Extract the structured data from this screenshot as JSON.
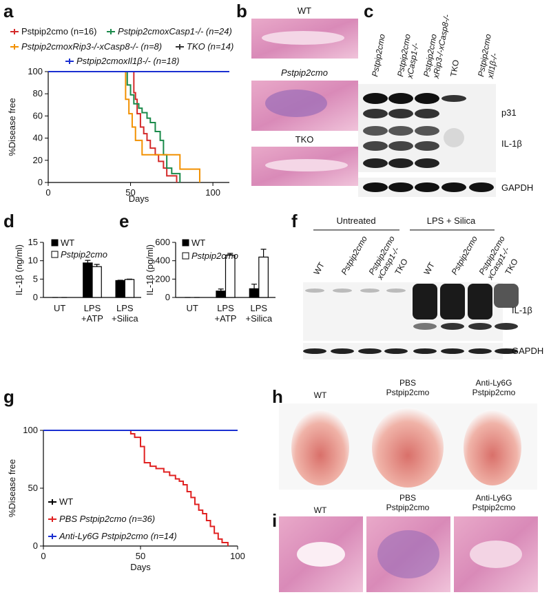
{
  "panel_labels": [
    "a",
    "b",
    "c",
    "d",
    "e",
    "f",
    "g",
    "h",
    "i"
  ],
  "chart_data": [
    {
      "type": "step",
      "x_label": "Days",
      "y_label": "%Disease free",
      "xlim": [
        0,
        110
      ],
      "xticks": [
        0,
        50,
        100
      ],
      "ylim": [
        0,
        100
      ],
      "yticks": [
        0,
        20,
        40,
        60,
        80,
        100
      ],
      "series": [
        {
          "name": "Pstpip2cmo (n=16)",
          "color": "#d42a2a",
          "x": [
            0,
            52,
            53,
            54,
            56,
            58,
            60,
            62,
            65,
            67,
            70,
            72,
            75,
            78
          ],
          "values": [
            100,
            81,
            75,
            62,
            50,
            44,
            38,
            31,
            25,
            19,
            13,
            6,
            6,
            0
          ]
        },
        {
          "name": "Pstpip2cmoxCasp1-/- (n=24)",
          "color": "#1a8a4a",
          "x": [
            0,
            48,
            50,
            52,
            55,
            57,
            60,
            62,
            65,
            68,
            70,
            72,
            75,
            80
          ],
          "values": [
            100,
            88,
            79,
            71,
            67,
            63,
            58,
            54,
            46,
            38,
            25,
            13,
            8,
            0
          ]
        },
        {
          "name": "Pstpip2cmoxRip3-/-xCasp8-/- (n=8)",
          "color": "#f29000",
          "x": [
            0,
            47,
            49,
            51,
            53,
            57,
            66,
            80,
            92
          ],
          "values": [
            100,
            75,
            62,
            50,
            38,
            25,
            25,
            12,
            0
          ]
        },
        {
          "name": "TKO (n=14)",
          "color": "#333333",
          "x": [
            0,
            110
          ],
          "values": [
            100,
            100
          ]
        },
        {
          "name": "Pstpip2cmoxIl1β-/- (n=18)",
          "color": "#1a2fd1",
          "x": [
            0,
            110
          ],
          "values": [
            100,
            100
          ]
        }
      ]
    },
    {
      "type": "bar",
      "y_label": "IL-1β (ng/ml)",
      "categories": [
        "UT",
        "LPS\n+ATP",
        "LPS\n+Silica"
      ],
      "ylim": [
        0,
        15
      ],
      "yticks": [
        0,
        5,
        10,
        15
      ],
      "series": [
        {
          "name": "WT",
          "color": "#000000",
          "values": [
            0,
            9.4,
            4.6
          ],
          "errors": [
            0,
            0.7,
            0.1
          ]
        },
        {
          "name": "Pstpip2cmo",
          "color": "#ffffff",
          "values": [
            0,
            8.4,
            4.9
          ],
          "errors": [
            0,
            0.6,
            0.1
          ]
        }
      ]
    },
    {
      "type": "bar",
      "y_label": "IL-1β (pg/ml)",
      "categories": [
        "UT",
        "LPS\n+ATP",
        "LPS\n+Silica"
      ],
      "ylim": [
        0,
        600
      ],
      "yticks": [
        0,
        200,
        400,
        600
      ],
      "series": [
        {
          "name": "WT",
          "color": "#000000",
          "values": [
            0,
            70,
            95
          ],
          "errors": [
            0,
            22,
            50
          ]
        },
        {
          "name": "Pstpip2cmo",
          "color": "#ffffff",
          "values": [
            0,
            460,
            440
          ],
          "errors": [
            0,
            20,
            85
          ]
        }
      ]
    },
    {
      "type": "step",
      "x_label": "Days",
      "y_label": "%Disease free",
      "xlim": [
        0,
        100
      ],
      "xticks": [
        0,
        50,
        100
      ],
      "ylim": [
        0,
        100
      ],
      "yticks": [
        0,
        50,
        100
      ],
      "series": [
        {
          "name": "WT",
          "color": "#000000",
          "x": [
            0,
            100
          ],
          "values": [
            100,
            100
          ]
        },
        {
          "name": "PBS Pstpip2cmo (n=36)",
          "color": "#e02020",
          "x": [
            0,
            45,
            47,
            50,
            52,
            55,
            58,
            62,
            65,
            68,
            70,
            72,
            74,
            76,
            78,
            80,
            82,
            84,
            86,
            88,
            90,
            92,
            95
          ],
          "values": [
            100,
            97,
            94,
            86,
            72,
            69,
            67,
            64,
            61,
            58,
            56,
            53,
            47,
            42,
            36,
            31,
            28,
            22,
            17,
            11,
            6,
            3,
            0
          ]
        },
        {
          "name": "Anti-Ly6G Pstpip2cmo (n=14)",
          "color": "#1a2fd1",
          "x": [
            0,
            100
          ],
          "values": [
            100,
            100
          ]
        }
      ]
    }
  ],
  "histology_b": {
    "labels": [
      "WT",
      "Pstpip2cmo",
      "TKO"
    ]
  },
  "blot_c": {
    "lanes": [
      "Pstpip2cmo",
      "Pstpip2cmo\nxCasp1-/-",
      "Pstpip2cmo\nxRip3-/-xCasp8-/-",
      "TKO",
      "Pstpip2cmo\nxIl1β-/-"
    ],
    "bands": [
      "p31",
      "IL-1β",
      "GAPDH"
    ]
  },
  "blot_f": {
    "groups": [
      "Untreated",
      "LPS + Silica"
    ],
    "lanes": [
      "WT",
      "Pstpip2cmo",
      "Pstpip2cmo\nxCasp1-/-",
      "TKO",
      "WT",
      "Pstpip2cmo",
      "Pstpip2cmo\nxCasp1-/-",
      "TKO"
    ],
    "bands": [
      "IL-1β",
      "GAPDH"
    ]
  },
  "photos_h": {
    "labels": [
      "WT",
      "PBS\nPstpip2cmo",
      "Anti-Ly6G\nPstpip2cmo"
    ]
  },
  "histology_i": {
    "labels": [
      "WT",
      "PBS\nPstpip2cmo",
      "Anti-Ly6G\nPstpip2cmo"
    ]
  }
}
